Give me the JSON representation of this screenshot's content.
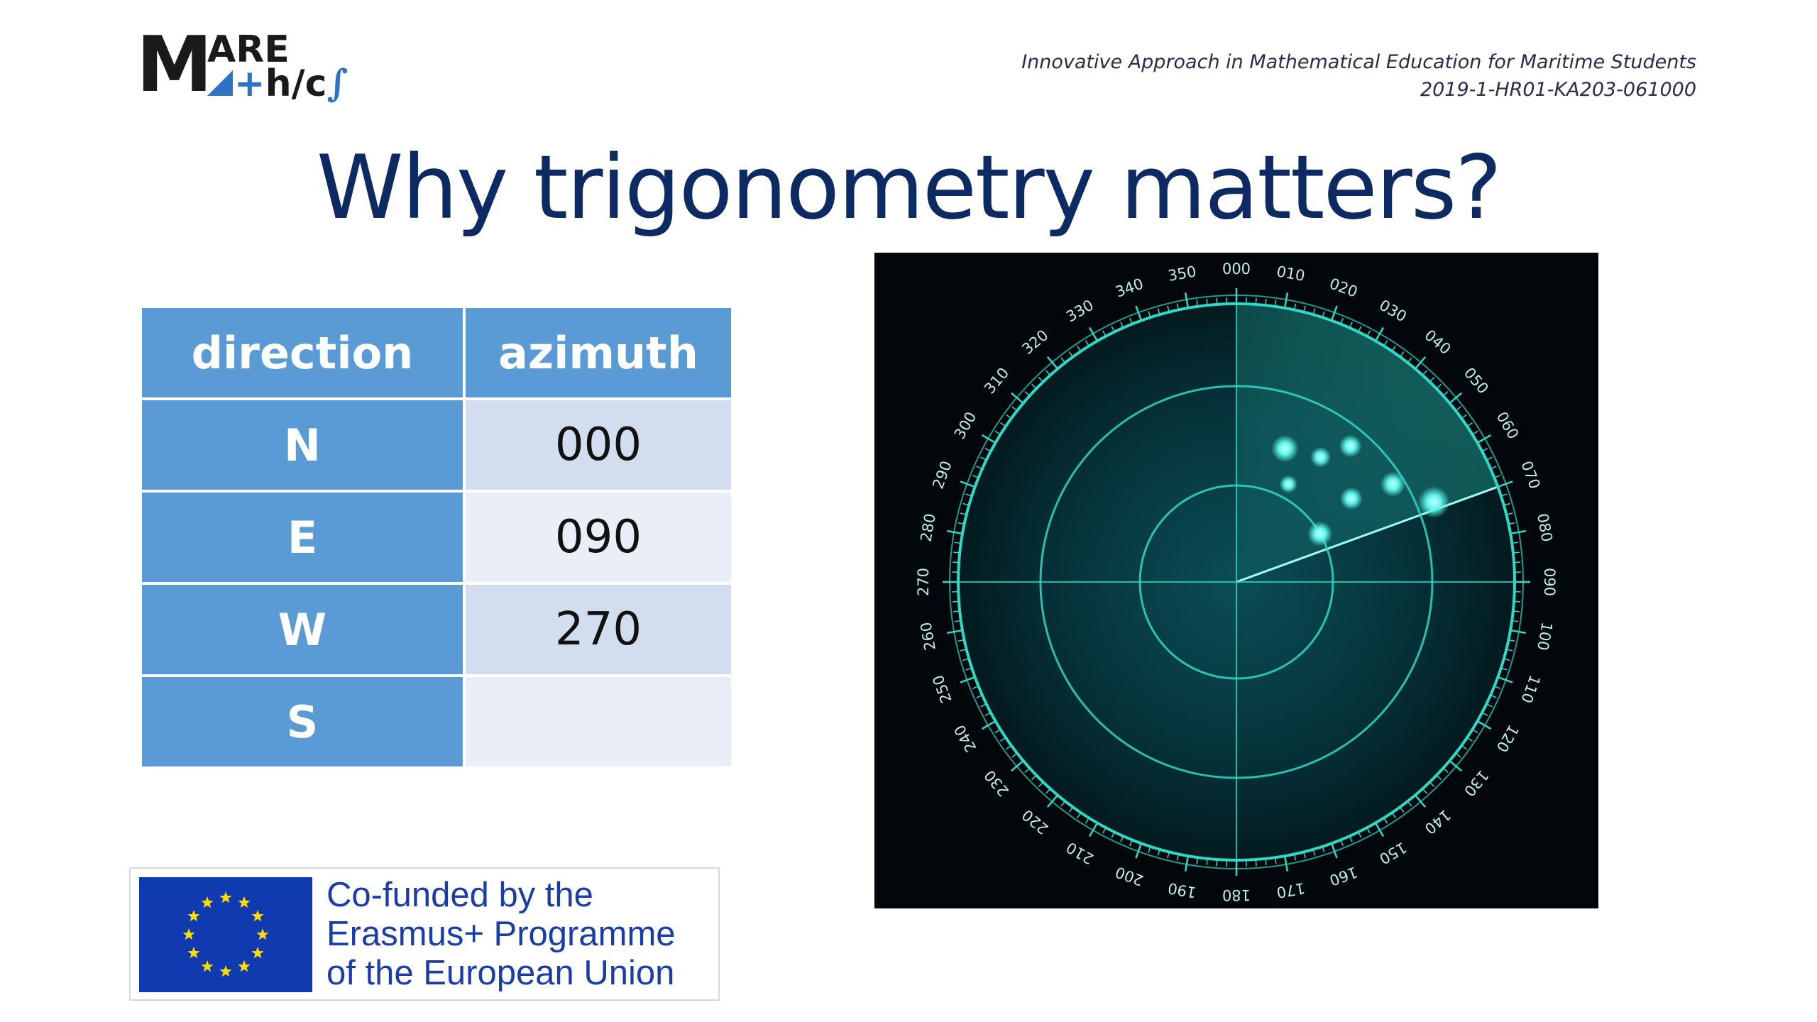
{
  "logo": {
    "big": "M",
    "top": "ARE",
    "bottom_mid": "h/c",
    "bottom_plus": "+",
    "bottom_end": "∫"
  },
  "header": {
    "project_line1": "Innovative Approach in Mathematical Education for Maritime Students",
    "project_line2": "2019-1-HR01-KA203-061000"
  },
  "title": "Why trigonometry matters?",
  "table": {
    "headers": [
      "direction",
      "azimuth"
    ],
    "rows": [
      {
        "direction": "N",
        "azimuth": "000"
      },
      {
        "direction": "E",
        "azimuth": "090"
      },
      {
        "direction": "W",
        "azimuth": "270"
      },
      {
        "direction": "S",
        "azimuth": ""
      }
    ]
  },
  "radar": {
    "bearing_labels": [
      "000",
      "010",
      "020",
      "030",
      "040",
      "050",
      "060",
      "070",
      "080",
      "090",
      "100",
      "110",
      "120",
      "130",
      "140",
      "150",
      "160",
      "170",
      "180",
      "190",
      "200",
      "210",
      "220",
      "230",
      "240",
      "250",
      "260",
      "270",
      "280",
      "290",
      "300",
      "310",
      "320",
      "330",
      "340",
      "350"
    ],
    "sweep_bearing_deg": 70,
    "colors": {
      "ring": "#2fd9c8",
      "label": "#bfeee8",
      "blip": "#5ff5ea",
      "background": "#01070a"
    }
  },
  "eu": {
    "line1": "Co-funded by the",
    "line2": "Erasmus+ Programme",
    "line3": "of the European Union",
    "flag_color": "#0f3ab0",
    "star_color": "#ffdd00"
  }
}
